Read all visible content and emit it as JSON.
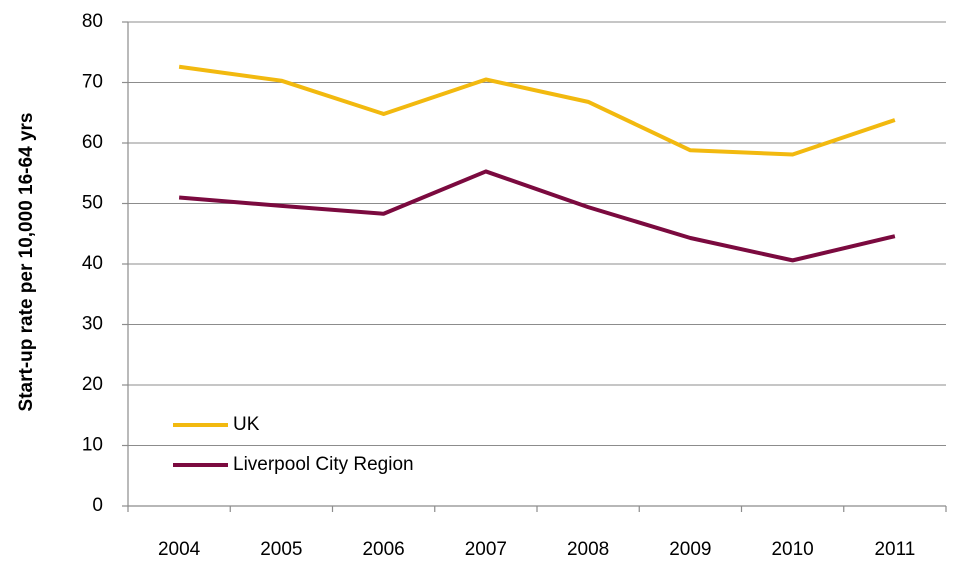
{
  "chart_data": {
    "type": "line",
    "y_label": "Start-up rate per 10,000 16-64 yrs",
    "categories": [
      "2004",
      "2005",
      "2006",
      "2007",
      "2008",
      "2009",
      "2010",
      "2011"
    ],
    "series": [
      {
        "name": "UK",
        "color": "#f2b90f",
        "values": [
          72.6,
          70.3,
          64.8,
          70.5,
          66.8,
          58.8,
          58.1,
          63.8
        ]
      },
      {
        "name": "Liverpool City Region",
        "color": "#7b0a3f",
        "values": [
          51.0,
          49.6,
          48.3,
          55.3,
          49.4,
          44.3,
          40.6,
          44.6
        ]
      }
    ],
    "ylim": [
      0,
      80
    ],
    "yticks": [
      0,
      10,
      20,
      30,
      40,
      50,
      60,
      70,
      80
    ],
    "grid": true,
    "legend": "lower left"
  }
}
